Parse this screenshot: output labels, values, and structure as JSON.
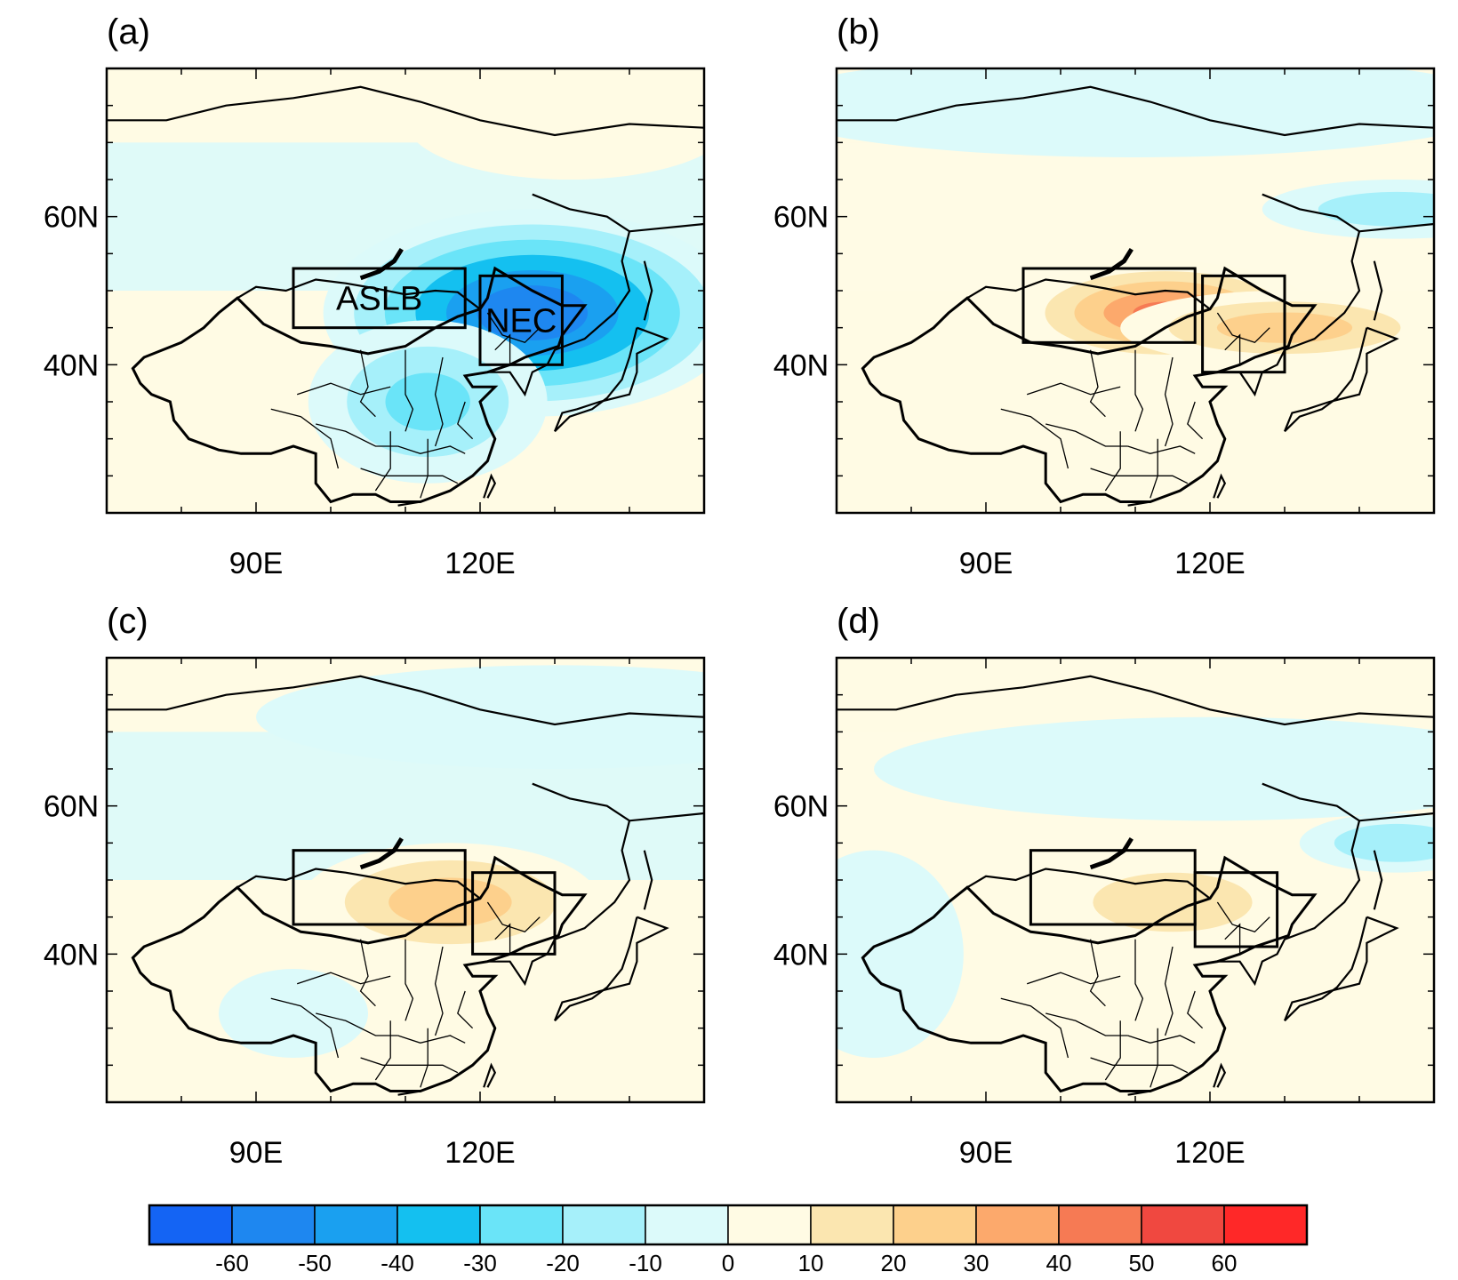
{
  "panels": [
    {
      "label": "(a)",
      "x_ticks": [
        "90E",
        "120E"
      ],
      "y_ticks": [
        "60N",
        "40N"
      ],
      "boxes": [
        {
          "name": "ASLB",
          "label": "ASLB",
          "lon": [
            95,
            118
          ],
          "lat": [
            45,
            53
          ]
        },
        {
          "name": "NEC",
          "label": "NEC",
          "lon": [
            120,
            131
          ],
          "lat": [
            40,
            52
          ]
        }
      ],
      "anomalies": [
        {
          "lon": 127,
          "lat": 47,
          "value": -62,
          "rx": 28,
          "ry": 14
        },
        {
          "lon": 113,
          "lat": 35,
          "value": -25,
          "rx": 16,
          "ry": 11
        },
        {
          "lon": 132,
          "lat": 73,
          "value": 12,
          "rx": 22,
          "ry": 8
        },
        {
          "lon": 72,
          "lat": 27,
          "value": 8,
          "rx": 10,
          "ry": 8
        }
      ]
    },
    {
      "label": "(b)",
      "x_ticks": [
        "90E",
        "120E"
      ],
      "y_ticks": [
        "60N",
        "40N"
      ],
      "boxes": [
        {
          "name": "ASLB",
          "label": "",
          "lon": [
            95,
            118
          ],
          "lat": [
            43,
            53
          ]
        },
        {
          "name": "NEC",
          "label": "",
          "lon": [
            119,
            130
          ],
          "lat": [
            39,
            52
          ]
        }
      ],
      "anomalies": [
        {
          "lon": 114,
          "lat": 47,
          "value": 45,
          "rx": 20,
          "ry": 7
        },
        {
          "lon": 130,
          "lat": 45,
          "value": 28,
          "rx": 22,
          "ry": 5
        },
        {
          "lon": 145,
          "lat": 61,
          "value": -18,
          "rx": 18,
          "ry": 4
        },
        {
          "lon": 110,
          "lat": 75,
          "value": -12,
          "rx": 50,
          "ry": 7
        }
      ]
    },
    {
      "label": "(c)",
      "x_ticks": [
        "90E",
        "120E"
      ],
      "y_ticks": [
        "60N",
        "40N"
      ],
      "boxes": [
        {
          "name": "ASLB",
          "label": "",
          "lon": [
            95,
            118
          ],
          "lat": [
            44,
            54
          ]
        },
        {
          "name": "NEC",
          "label": "",
          "lon": [
            119,
            130
          ],
          "lat": [
            40,
            51
          ]
        }
      ],
      "anomalies": [
        {
          "lon": 116,
          "lat": 47,
          "value": 28,
          "rx": 20,
          "ry": 8
        },
        {
          "lon": 130,
          "lat": 72,
          "value": -9,
          "rx": 40,
          "ry": 7
        },
        {
          "lon": 95,
          "lat": 32,
          "value": -8,
          "rx": 10,
          "ry": 6
        }
      ]
    },
    {
      "label": "(d)",
      "x_ticks": [
        "90E",
        "120E"
      ],
      "y_ticks": [
        "60N",
        "40N"
      ],
      "boxes": [
        {
          "name": "ASLB",
          "label": "",
          "lon": [
            96,
            118
          ],
          "lat": [
            44,
            54
          ]
        },
        {
          "name": "NEC",
          "label": "",
          "lon": [
            118,
            129
          ],
          "lat": [
            41,
            51
          ]
        }
      ],
      "anomalies": [
        {
          "lon": 115,
          "lat": 47,
          "value": 24,
          "rx": 16,
          "ry": 6
        },
        {
          "lon": 145,
          "lat": 55,
          "value": -22,
          "rx": 13,
          "ry": 4
        },
        {
          "lon": 120,
          "lat": 65,
          "value": -10,
          "rx": 45,
          "ry": 7
        },
        {
          "lon": 75,
          "lat": 40,
          "value": -8,
          "rx": 12,
          "ry": 14
        }
      ]
    }
  ],
  "colorbar": {
    "ticks": [
      "-60",
      "-50",
      "-40",
      "-30",
      "-20",
      "-10",
      "0",
      "10",
      "20",
      "30",
      "40",
      "50",
      "60"
    ],
    "colors": [
      "#1464f4",
      "#1e87f0",
      "#1aa0f0",
      "#14c0f0",
      "#6ae4f8",
      "#a6f0fa",
      "#dcfafa",
      "#fffbe4",
      "#fbe6b0",
      "#fdd08c",
      "#fca96c",
      "#f67a54",
      "#f04840",
      "#ff2828"
    ]
  },
  "map": {
    "lon_range": [
      70,
      150
    ],
    "lat_range": [
      20,
      80
    ]
  }
}
